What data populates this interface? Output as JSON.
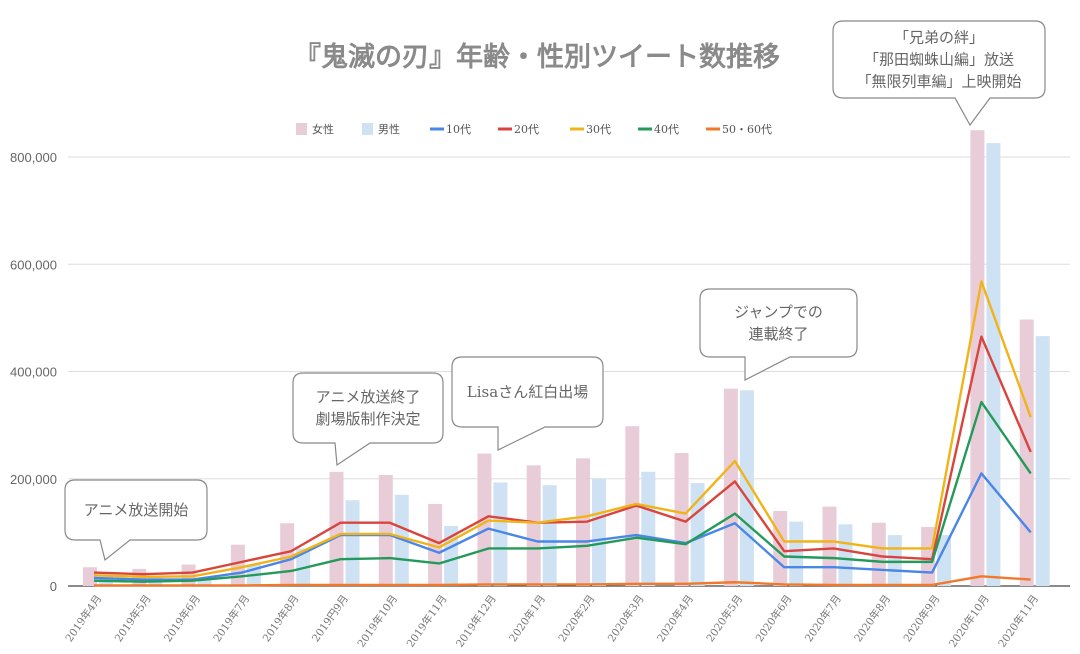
{
  "chart_data": {
    "type": "bar+line",
    "title": "『鬼滅の刃』年齢・性別ツイート数推移",
    "categories": [
      "2019年4月",
      "2019年5月",
      "2019年6月",
      "2019年7月",
      "2019年8月",
      "2019円9月",
      "2019年10月",
      "2019年11月",
      "2019年12月",
      "2020年1月",
      "2020年2月",
      "2020年3月",
      "2020年4月",
      "2020年5月",
      "2020年6月",
      "2020年7月",
      "2020年8月",
      "2020年9月",
      "2020年10月",
      "2020年11月"
    ],
    "ylim": [
      0,
      800000
    ],
    "yticks": [
      "0",
      "200,000",
      "400,000",
      "600,000",
      "800,000"
    ],
    "ytick_values": [
      0,
      200000,
      400000,
      600000,
      800000
    ],
    "grid": true,
    "legend_position": "top",
    "bar_series": [
      {
        "name": "女性",
        "color": "#e8cdd9",
        "values": [
          35000,
          32000,
          40000,
          77000,
          117000,
          213000,
          207000,
          153000,
          247000,
          225000,
          238000,
          298000,
          248000,
          368000,
          140000,
          148000,
          118000,
          110000,
          850000,
          497000
        ]
      },
      {
        "name": "男性",
        "color": "#cfe2f3",
        "values": [
          20000,
          18000,
          15000,
          40000,
          70000,
          160000,
          170000,
          112000,
          193000,
          188000,
          200000,
          213000,
          192000,
          365000,
          120000,
          115000,
          95000,
          95000,
          826000,
          466000
        ]
      }
    ],
    "line_series": [
      {
        "name": "10代",
        "color": "#4a86e8",
        "values": [
          15000,
          12000,
          12000,
          25000,
          50000,
          95000,
          95000,
          62000,
          107000,
          83000,
          83000,
          95000,
          80000,
          117000,
          35000,
          35000,
          30000,
          25000,
          210000,
          100000
        ]
      },
      {
        "name": "20代",
        "color": "#d9453d",
        "values": [
          25000,
          22000,
          25000,
          45000,
          65000,
          118000,
          118000,
          80000,
          130000,
          118000,
          120000,
          150000,
          120000,
          195000,
          65000,
          70000,
          55000,
          50000,
          465000,
          250000
        ]
      },
      {
        "name": "30代",
        "color": "#f1b418",
        "values": [
          20000,
          17000,
          18000,
          35000,
          55000,
          97000,
          97000,
          72000,
          122000,
          118000,
          130000,
          153000,
          135000,
          233000,
          83000,
          83000,
          70000,
          70000,
          568000,
          315000
        ]
      },
      {
        "name": "40代",
        "color": "#249a5a",
        "values": [
          10000,
          8000,
          10000,
          18000,
          28000,
          50000,
          52000,
          42000,
          70000,
          70000,
          75000,
          90000,
          78000,
          135000,
          55000,
          52000,
          45000,
          45000,
          343000,
          210000
        ]
      },
      {
        "name": "50・60代",
        "color": "#f07a2a",
        "values": [
          1000,
          1000,
          1000,
          1000,
          2000,
          2000,
          2000,
          2000,
          3000,
          3000,
          3000,
          4000,
          4000,
          7000,
          3000,
          2000,
          2000,
          2000,
          18000,
          12000
        ]
      }
    ],
    "annotations": [
      {
        "lines": [
          "アニメ放送開始"
        ],
        "category": "2019年4月"
      },
      {
        "lines": [
          "アニメ放送終了",
          "劇場版制作決定"
        ],
        "category": "2019円9月"
      },
      {
        "lines": [
          "Lisaさん紅白出場"
        ],
        "category": "2019年12月"
      },
      {
        "lines": [
          "ジャンプでの",
          "連載終了"
        ],
        "category": "2020年5月"
      },
      {
        "lines": [
          "「兄弟の絆」",
          "「那田蜘蛛山編」放送",
          "「無限列車編」上映開始"
        ],
        "category": "2020年10月"
      }
    ]
  }
}
